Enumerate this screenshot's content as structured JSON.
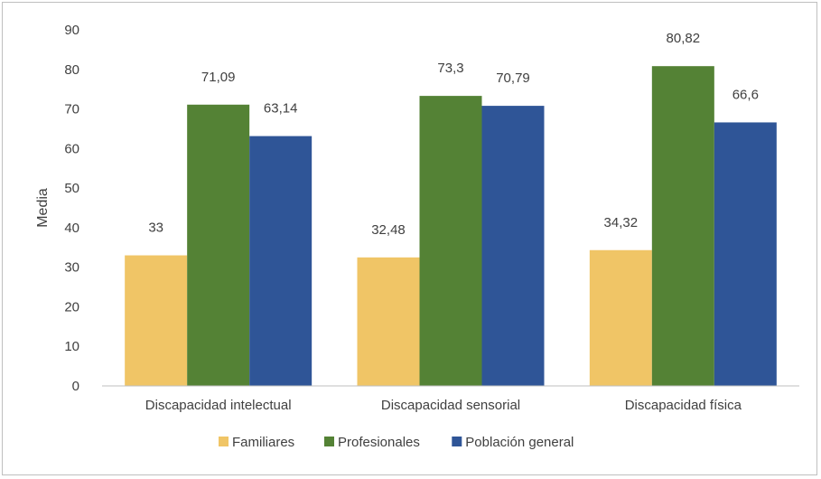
{
  "chart_data": {
    "type": "bar",
    "categories": [
      "Discapacidad intelectual",
      "Discapacidad sensorial",
      "Discapacidad física"
    ],
    "series": [
      {
        "name": "Familiares",
        "values": [
          33,
          32.48,
          34.32
        ],
        "labels": [
          "33",
          "32,48",
          "34,32"
        ],
        "color": "#f0c566"
      },
      {
        "name": "Profesionales",
        "values": [
          71.09,
          73.3,
          80.82
        ],
        "labels": [
          "71,09",
          "73,3",
          "80,82"
        ],
        "color": "#548235"
      },
      {
        "name": "Población general",
        "values": [
          63.14,
          70.79,
          66.6
        ],
        "labels": [
          "63,14",
          "70,79",
          "66,6"
        ],
        "color": "#2f5597"
      }
    ],
    "ylabel": "Media",
    "xlabel": "",
    "ylim": [
      0,
      90
    ],
    "yticks": [
      0,
      10,
      20,
      30,
      40,
      50,
      60,
      70,
      80,
      90
    ],
    "grid": false,
    "legend_position": "bottom"
  }
}
